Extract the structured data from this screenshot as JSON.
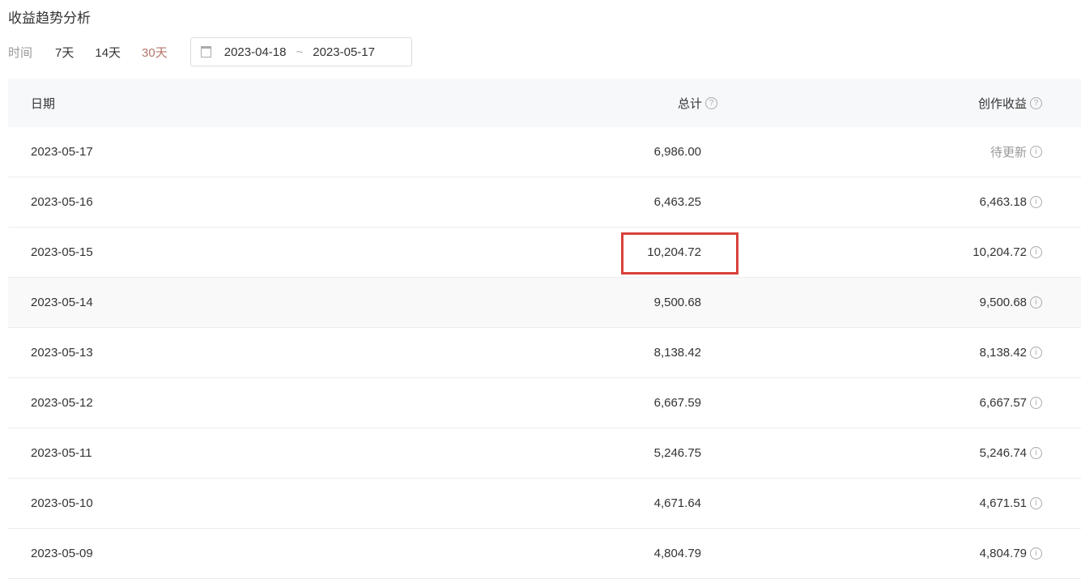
{
  "title": "收益趋势分析",
  "filters": {
    "label": "时间",
    "options": [
      "7天",
      "14天",
      "30天"
    ],
    "active": "30天",
    "date_start": "2023-04-18",
    "date_end": "2023-05-17",
    "separator": "~"
  },
  "table": {
    "headers": {
      "date": "日期",
      "total": "总计",
      "creation": "创作收益"
    },
    "rows": [
      {
        "date": "2023-05-17",
        "total": "6,986.00",
        "creation": "待更新"
      },
      {
        "date": "2023-05-16",
        "total": "6,463.25",
        "creation": "6,463.18"
      },
      {
        "date": "2023-05-15",
        "total": "10,204.72",
        "creation": "10,204.72"
      },
      {
        "date": "2023-05-14",
        "total": "9,500.68",
        "creation": "9,500.68"
      },
      {
        "date": "2023-05-13",
        "total": "8,138.42",
        "creation": "8,138.42"
      },
      {
        "date": "2023-05-12",
        "total": "6,667.59",
        "creation": "6,667.57"
      },
      {
        "date": "2023-05-11",
        "total": "5,246.75",
        "creation": "5,246.74"
      },
      {
        "date": "2023-05-10",
        "total": "4,671.64",
        "creation": "4,671.51"
      },
      {
        "date": "2023-05-09",
        "total": "4,804.79",
        "creation": "4,804.79"
      }
    ]
  },
  "highlight": {
    "color": "#d9413a",
    "row": "2023-05-15",
    "column": "total"
  },
  "colors": {
    "accent": "#b5756a",
    "header_bg": "#f7f8fa"
  }
}
